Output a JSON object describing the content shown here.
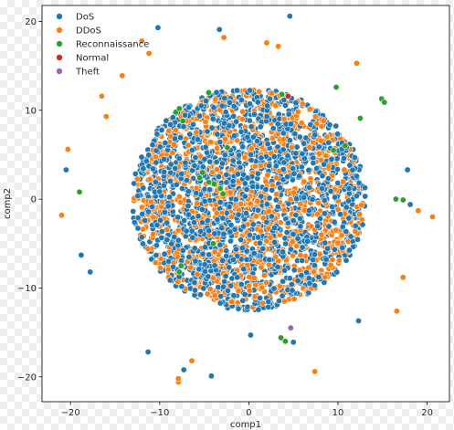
{
  "chart_data": {
    "type": "scatter",
    "xlabel": "comp1",
    "ylabel": "comp2",
    "xlim": [
      -23.2,
      22.5
    ],
    "ylim": [
      -22.8,
      21.8
    ],
    "xticks": [
      -20,
      -10,
      0,
      10,
      20
    ],
    "yticks": [
      -20,
      -10,
      0,
      10,
      20
    ],
    "grid": false,
    "legend_position": "upper-left",
    "series": [
      {
        "name": "DoS",
        "color": "#1f77b4",
        "count": 1700,
        "radius": 12.5,
        "center": [
          0,
          0
        ],
        "extra_points": [
          [
            -10.2,
            19.3
          ],
          [
            -3.3,
            19.1
          ],
          [
            4.6,
            20.6
          ],
          [
            -20.5,
            3.3
          ],
          [
            -18.8,
            -6.3
          ],
          [
            -17.8,
            -8.2
          ],
          [
            -11.3,
            -17.2
          ],
          [
            -7.3,
            -19.2
          ],
          [
            -4.2,
            -19.9
          ],
          [
            0.2,
            -15.3
          ],
          [
            5.0,
            -16.1
          ],
          [
            12.3,
            -13.7
          ],
          [
            17.8,
            3.3
          ],
          [
            18.1,
            -0.6
          ]
        ]
      },
      {
        "name": "DDoS",
        "color": "#ff7f0e",
        "count": 1350,
        "radius": 12.3,
        "center": [
          0,
          0
        ],
        "extra_points": [
          [
            -21.0,
            -1.8
          ],
          [
            -20.3,
            5.6
          ],
          [
            -16.5,
            11.6
          ],
          [
            -16.0,
            9.3
          ],
          [
            -14.2,
            13.9
          ],
          [
            -12.0,
            17.8
          ],
          [
            -11.2,
            16.4
          ],
          [
            -7.9,
            -20.6
          ],
          [
            -7.9,
            -20.2
          ],
          [
            -6.4,
            -18.2
          ],
          [
            -2.8,
            18.2
          ],
          [
            2.0,
            17.6
          ],
          [
            3.3,
            17.2
          ],
          [
            12.1,
            15.3
          ],
          [
            17.3,
            -8.8
          ],
          [
            19.0,
            -1.3
          ],
          [
            20.6,
            -2.0
          ],
          [
            16.6,
            -12.6
          ],
          [
            7.4,
            -19.4
          ]
        ]
      },
      {
        "name": "Reconnaissance",
        "color": "#2ca02c",
        "count": 0,
        "radius": 0,
        "center": [
          0,
          0
        ],
        "extra_points": [
          [
            -19.0,
            0.8
          ],
          [
            -8.2,
            9.8
          ],
          [
            -7.8,
            10.2
          ],
          [
            -7.4,
            8.8
          ],
          [
            -5.2,
            3.0
          ],
          [
            -4.5,
            1.9
          ],
          [
            -3.9,
            1.7
          ],
          [
            -3.2,
            1.2
          ],
          [
            -2.9,
            0.6
          ],
          [
            -5.5,
            2.4
          ],
          [
            -4.0,
            -5.0
          ],
          [
            -7.6,
            -7.5
          ],
          [
            -7.8,
            -8.2
          ],
          [
            3.6,
            -15.6
          ],
          [
            4.1,
            -16.0
          ],
          [
            9.8,
            12.6
          ],
          [
            14.9,
            11.3
          ],
          [
            15.2,
            10.9
          ],
          [
            12.5,
            9.1
          ],
          [
            10.8,
            6.0
          ],
          [
            9.5,
            5.5
          ],
          [
            16.5,
            0.0
          ],
          [
            17.3,
            -0.1
          ],
          [
            3.7,
            11.8
          ],
          [
            -4.5,
            12.0
          ],
          [
            -2.4,
            5.8
          ]
        ]
      },
      {
        "name": "Normal",
        "color": "#d62728",
        "count": 0,
        "radius": 0,
        "center": [
          0,
          0
        ],
        "extra_points": [
          [
            4.4,
            11.6
          ]
        ]
      },
      {
        "name": "Theft",
        "color": "#9467bd",
        "count": 0,
        "radius": 0,
        "center": [
          0,
          0
        ],
        "extra_points": [
          [
            4.7,
            -14.5
          ]
        ]
      }
    ]
  },
  "legend": {
    "items": [
      {
        "label": "DoS",
        "color": "#1f77b4"
      },
      {
        "label": "DDoS",
        "color": "#ff7f0e"
      },
      {
        "label": "Reconnaissance",
        "color": "#2ca02c"
      },
      {
        "label": "Normal",
        "color": "#d62728"
      },
      {
        "label": "Theft",
        "color": "#9467bd"
      }
    ]
  }
}
